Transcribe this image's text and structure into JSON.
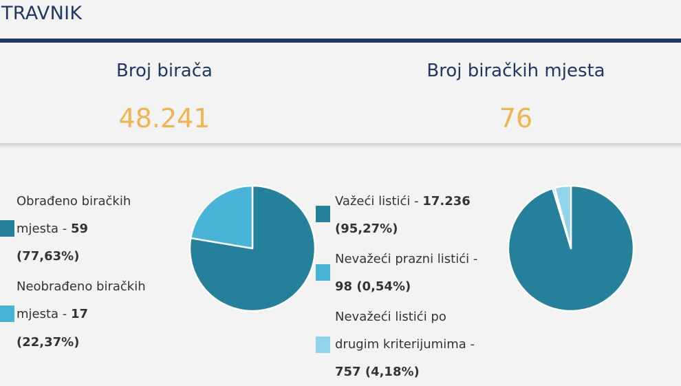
{
  "page": {
    "title": "TRAVNIK"
  },
  "stats": {
    "voters_label": "Broj birača",
    "voters_value": "48.241",
    "polling_label": "Broj biračkih mjesta",
    "polling_value": "76"
  },
  "colors": {
    "dark_teal": "#25819b",
    "light_blue": "#47b3d6",
    "pale_blue": "#91d4ea",
    "accent_orange": "#f0b350",
    "navy": "#1f3864"
  },
  "processed": {
    "items": [
      {
        "text_prefix": "Obrađeno biračkih",
        "text_mid": "mjesta - ",
        "value": "59",
        "percent": "(77,63%)"
      },
      {
        "text_prefix": "Neobrađeno biračkih",
        "text_mid": "mjesta - ",
        "value": "17",
        "percent": "(22,37%)"
      }
    ],
    "chart_data": {
      "type": "pie",
      "categories": [
        "Obrađeno biračkih mjesta",
        "Neobrađeno biračkih mjesta"
      ],
      "values": [
        59,
        17
      ]
    }
  },
  "ballots": {
    "items": [
      {
        "line1": "Važeći listići - ",
        "value": "17.236",
        "line2": "(95,27%)"
      },
      {
        "line1": "Nevažeći prazni listići -",
        "line2": "98 (0,54%)"
      },
      {
        "line1": "Nevažeći listići po",
        "line2": "drugim kriterijumima -",
        "line3": "757 (4,18%)"
      }
    ],
    "chart_data": {
      "type": "pie",
      "categories": [
        "Važeći listići",
        "Nevažeći prazni listići",
        "Nevažeći listići po drugim kriterijumima"
      ],
      "values": [
        17236,
        98,
        757
      ]
    }
  }
}
